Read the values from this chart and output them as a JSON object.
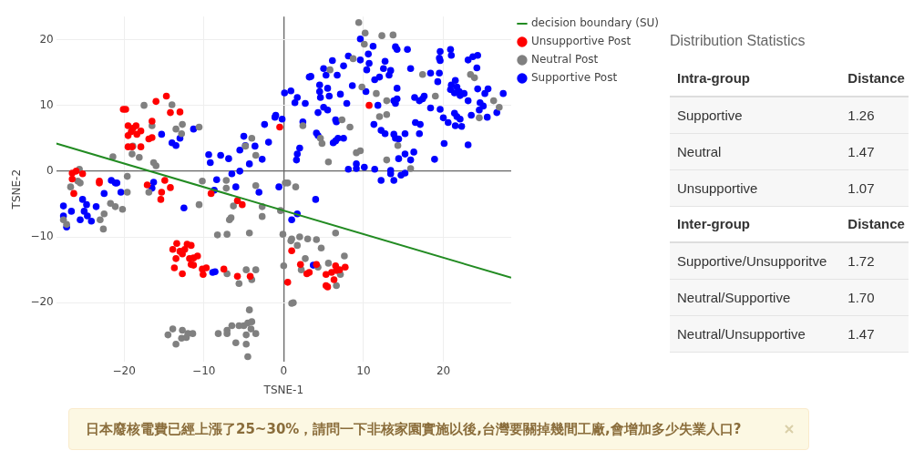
{
  "chart_data": [
    {
      "type": "scatter",
      "xlabel": "TSNE-1",
      "ylabel": "TSNE-2",
      "xlim": [
        -28.5,
        28.5
      ],
      "ylim": [
        -29,
        23.5
      ],
      "xticks": [
        {
          "value": -20,
          "label": "−20"
        },
        {
          "value": -10,
          "label": "−10"
        },
        0,
        10,
        20
      ],
      "yticks": [
        {
          "value": -20,
          "label": "−20"
        },
        {
          "value": -10,
          "label": "−10"
        },
        0,
        10,
        20
      ],
      "grid": true,
      "legend": "top right",
      "marker": "circle",
      "annotations": [
        "日本廢核電費已經上漲了25~30%，請問一下非核家園實施以後,台灣要關掉幾間工廠,會增加多少失業人口?"
      ],
      "series": [
        {
          "name": "decision boundary (SU)",
          "type": "line",
          "line_style": "solid",
          "marker": "none",
          "color": "#228b22",
          "x": [
            -28.5,
            28.5
          ],
          "values": [
            4.2,
            -16.2
          ]
        },
        {
          "name": "Unsupportive Post",
          "color": "#ff0000",
          "x": [
            -20.1,
            -19.8,
            -16.0,
            -14.7,
            -14.2,
            -13.0,
            -16.5,
            -19.5,
            -18.5,
            -18.9,
            -19.1,
            -17.9,
            -19.5,
            -18.4,
            -16.9,
            -16.5,
            -19.5,
            -19.0,
            -17.9,
            -0.5,
            10.7,
            -26.5,
            -26.0,
            -25.2,
            -26.5,
            -23.1,
            -23.1,
            -17.1,
            -14.9,
            -14.2,
            -26.3,
            -15.3,
            -15.4,
            -9.1,
            -5.8,
            -5.2,
            -13.4,
            -12.1,
            -11.6,
            -13.9,
            -13.0,
            -12.4,
            -12.7,
            -13.5,
            -11.8,
            -11.3,
            -10.8,
            -11.6,
            -11.3,
            -13.7,
            -12.7,
            -10.2,
            -9.7,
            -10.1,
            -7.5,
            -5.8,
            -4.2,
            0.5,
            1.0,
            2.1,
            4.1,
            2.9,
            3.2,
            6.5,
            7.7,
            5.3,
            6.0,
            6.6,
            7.0,
            6.3,
            5.3,
            5.5
          ],
          "values": [
            9.4,
            9.4,
            10.6,
            11.4,
            8.9,
            9.0,
            7.6,
            6.9,
            6.9,
            6.5,
            6.0,
            6.1,
            5.4,
            5.6,
            4.9,
            5.1,
            3.7,
            3.7,
            3.7,
            6.7,
            10.0,
            -0.3,
            0,
            -0.4,
            -1.2,
            -1.5,
            -1.8,
            -2.1,
            -1.4,
            -2.5,
            -3.4,
            -3.2,
            -4.3,
            -3.4,
            -4.5,
            -5.1,
            -11.0,
            -11.1,
            -11.3,
            -11.9,
            -12.2,
            -11.9,
            -12.6,
            -13.3,
            -13.3,
            -13.2,
            -12.9,
            -14.2,
            -14.3,
            -14.7,
            -15.6,
            -14.9,
            -14.7,
            -15.7,
            -14.9,
            -16.0,
            -16.0,
            -16.9,
            -12.1,
            -14.2,
            -14.2,
            -15.6,
            -15.4,
            -14.4,
            -14.6,
            -15.7,
            -15.4,
            -15.1,
            -15.0,
            -16.5,
            -17.4,
            -17.6
          ]
        },
        {
          "name": "Neutral Post",
          "color": "#808080",
          "x": [
            -17.5,
            -14.0,
            -13.5,
            -12.7,
            -12.8,
            -16.5,
            -10.6,
            -18.9,
            -19.0,
            -18.1,
            -21.4,
            -16.3,
            -16.0,
            -25.6,
            -25.8,
            -25.5,
            -26.7,
            -19.6,
            -19.6,
            -10.2,
            -4.8,
            -4.0,
            -3.5,
            -7.2,
            -7.2,
            -3.5,
            0.2,
            9.4,
            10.2,
            12.3,
            13.7,
            10.1,
            8.7,
            5.8,
            17.4,
            23.4,
            23.9,
            19.0,
            9.8,
            11.6,
            12.9,
            26.3,
            27.0,
            24.5,
            12.0,
            12.9,
            7.3,
            8.3,
            2.4,
            4.6,
            4.8,
            14.3,
            9.1,
            9.6,
            5.6,
            12.9,
            15.9,
            0.5,
            1.5,
            -27.6,
            -27.2,
            -23.0,
            -22.5,
            -22.6,
            -21.7,
            -21.1,
            -20.2,
            -16.9,
            -10.6,
            -8.3,
            -7.1,
            -6.8,
            -6.6,
            -6.3,
            -4.3,
            -2.7,
            -2.7,
            -7.1,
            -5.6,
            -4.7,
            -3.5,
            -4.0,
            -0.1,
            0,
            -14.5,
            -13.9,
            -12.7,
            -12.0,
            -11.4,
            -13.5,
            -12.8,
            -12.2,
            -8.2,
            -7.1,
            -6.5,
            -5.6,
            -5.0,
            -4.5,
            -4.0,
            -4.1,
            -3.5,
            -4.7,
            -4.3,
            -6.0,
            -4.7,
            -4.5,
            -7.1,
            -0.4,
            0.9,
            1.0,
            1.7,
            2.0,
            3.0,
            4.1,
            4.7,
            6.5,
            2.7,
            2.2,
            5.6,
            4.3,
            7.6,
            7.1,
            6.6,
            1.0,
            1.2
          ],
          "values": [
            10.0,
            10.1,
            6.4,
            7.1,
            5.7,
            6.9,
            6.7,
            3.8,
            2.6,
            2.1,
            2.2,
            1.3,
            0.8,
            0.3,
            -1.5,
            -1.8,
            -2.4,
            -0.8,
            -3.2,
            -1.5,
            3.8,
            5.0,
            2.4,
            -1.4,
            -2.6,
            -2.2,
            -1.8,
            22.6,
            21.0,
            20.6,
            20.7,
            19.3,
            17.1,
            15.4,
            14.7,
            14.7,
            14.2,
            11.4,
            12.8,
            11.8,
            10.7,
            10.7,
            9.7,
            8.1,
            8.3,
            8.6,
            7.8,
            6.7,
            6.9,
            5.0,
            4.2,
            3.9,
            2.8,
            3.1,
            1.4,
            1.7,
            0.4,
            -1.8,
            -2.4,
            -7.4,
            -8.1,
            -7.4,
            -6.5,
            -8.8,
            -4.9,
            -5.4,
            -5.8,
            -3.2,
            -5.1,
            -9.7,
            -9.6,
            -7.4,
            -7.1,
            -5.3,
            -9.4,
            -6.9,
            -5.4,
            -15.6,
            -17.1,
            -15.0,
            -15.0,
            -16.5,
            -9.6,
            -14.4,
            -24.9,
            -24.0,
            -24.2,
            -24.7,
            -24.7,
            -26.3,
            -25.4,
            -25.3,
            -24.7,
            -24.2,
            -23.5,
            -23.5,
            -23.5,
            -23.1,
            -22.9,
            -24.0,
            -24.7,
            -24.9,
            -21.1,
            -26.1,
            -26.3,
            -28.2,
            -24.7,
            -6.0,
            -10.6,
            -10.3,
            -11.3,
            -10.0,
            -10.3,
            -10.4,
            -11.7,
            -9.4,
            -13.3,
            -15.0,
            -14.0,
            -14.6,
            -12.9,
            -15.7,
            -17.4,
            -20.1,
            -20.0
          ]
        },
        {
          "name": "Supportive Post",
          "color": "#0000ff",
          "x": [
            -15.3,
            -14.0,
            -13.5,
            -13.0,
            -11.3,
            -9.4,
            -9.2,
            -7.9,
            -6.9,
            -8.4,
            -6.5,
            -5.5,
            -6.0,
            -5.5,
            -4.8,
            -5.0,
            -4.3,
            -3.6,
            -2.7,
            -2.4,
            -1.9,
            -1.1,
            -1.0,
            -0.2,
            0.1,
            -0.6,
            -3.1,
            -22.5,
            -21.6,
            -20.9,
            -20.4,
            -16.3,
            -16.5,
            -27.6,
            -26.6,
            -27.6,
            -27.2,
            -25.5,
            -24.1,
            -25.2,
            -24.7,
            -25.0,
            -24.6,
            -23.5,
            -21.1,
            -12.5,
            -8.9,
            -8.6,
            -8.7,
            4.0,
            1.7,
            1.0,
            12.2,
            13.8,
            3.7,
            9.6,
            11.2,
            14.0,
            14.2,
            15.5,
            10.6,
            8.1,
            9.6,
            10.7,
            12.7,
            6.1,
            7.5,
            5.0,
            5.3,
            6.7,
            3.4,
            3.2,
            10.4,
            12.5,
            13.4,
            12.0,
            11.4,
            13.2,
            15.9,
            18.4,
            19.5,
            19.6,
            19.5,
            19.6,
            20.9,
            21.0,
            23.1,
            23.7,
            24.3,
            24.2,
            19.3,
            21.5,
            21.0,
            21.7,
            20.9,
            22.0,
            21.4,
            22.6,
            22.1,
            24.3,
            25.6,
            25.2,
            27.5,
            23.1,
            24.6,
            25.0,
            24.5,
            25.5,
            26.7,
            23.5,
            21.4,
            21.7,
            22.1,
            21.5,
            22.3,
            20.6,
            20.0,
            16.4,
            17.0,
            17.4,
            17.6,
            18.4,
            19.6,
            16.5,
            17.1,
            17.0,
            20.1,
            23.1,
            18.9,
            14.0,
            13.8,
            14.2,
            11.8,
            14.2,
            10.3,
            8.6,
            7.1,
            7.9,
            5.7,
            4.5,
            4.5,
            4.6,
            5.5,
            2.7,
            1.7,
            1.4,
            0.9,
            4.3,
            5.0,
            5.5,
            6.5,
            6.6,
            2.4,
            4.1,
            4.3,
            6.5,
            6.8,
            7.5,
            6.2,
            2.0,
            1.7,
            1.6,
            11.3,
            12.2,
            12.7,
            13.8,
            14.0,
            14.4,
            15.2,
            15.2,
            16.3,
            15.9,
            14.4,
            8.1,
            9.1,
            9.1,
            10.1,
            11.4,
            13.4,
            13.4,
            14.7,
            15.2
          ],
          "values": [
            5.6,
            4.3,
            3.9,
            5.0,
            6.4,
            2.5,
            1.3,
            2.4,
            1.9,
            -1.3,
            -0.4,
            0,
            -2.4,
            3.2,
            3.9,
            5.3,
            1.1,
            3.8,
            1.8,
            7.1,
            4.4,
            8.2,
            8.5,
            7.9,
            11.9,
            -2.4,
            -3.2,
            -3.4,
            -1.4,
            -1.8,
            -3.2,
            -1.7,
            -2.6,
            -5.3,
            -6.1,
            -6.8,
            -8.5,
            -7.4,
            -7.6,
            -4.3,
            -5.1,
            -6.1,
            -6.8,
            -5.4,
            -1.8,
            -5.6,
            -15.4,
            -15.3,
            -2.9,
            -4.3,
            -6.5,
            -7.4,
            -1.4,
            -1.4,
            -14.3,
            20.1,
            19.0,
            18.9,
            18.5,
            18.5,
            17.8,
            17.5,
            16.9,
            16.4,
            16.7,
            16.8,
            16.0,
            15.6,
            14.6,
            14.6,
            14.4,
            14.3,
            15.4,
            15.6,
            15.3,
            14.3,
            13.9,
            14.6,
            15.6,
            14.9,
            14.9,
            18.2,
            17.2,
            16.8,
            18.5,
            17.6,
            16.9,
            17.4,
            17.6,
            15.7,
            13.6,
            13.8,
            13.1,
            12.8,
            12.4,
            12.1,
            11.9,
            11.8,
            11.5,
            12.5,
            12.5,
            11.8,
            11.8,
            10.7,
            10.4,
            9.9,
            9.3,
            8.2,
            8.9,
            8.5,
            8.8,
            8.3,
            7.9,
            6.9,
            6.8,
            7.4,
            8.1,
            11.2,
            10.7,
            11.0,
            11.4,
            9.6,
            9.4,
            7.4,
            7.1,
            5.7,
            4.2,
            4.0,
            1.8,
            10.3,
            10.7,
            11.0,
            10.0,
            12.6,
            12.1,
            13.0,
            11.7,
            10.3,
            11.4,
            13.1,
            12.1,
            11.2,
            12.6,
            10.3,
            11.2,
            10.4,
            12.2,
            8.9,
            9.7,
            9.3,
            7.8,
            7.5,
            7.5,
            5.8,
            5.4,
            4.6,
            5.0,
            5.0,
            4.3,
            3.5,
            2.6,
            1.7,
            7.1,
            6.2,
            5.7,
            5.6,
            5.0,
            4.9,
            5.7,
            2.6,
            2.9,
            1.7,
            1.9,
            0.3,
            1.1,
            0.4,
            0.6,
            0.3,
            0.1,
            -0.4,
            -0.6,
            -0.3
          ]
        }
      ]
    },
    {
      "type": "other",
      "title": "Distribution Statistics",
      "annotations": [
        "Intra-group",
        "Distance",
        "Supportive",
        "1.26",
        "Neutral",
        "1.47",
        "Unsupportive",
        "1.07",
        "Inter-group",
        "Distance",
        "Supportive/Unsupporitve",
        "1.72",
        "Neutral/Supportive",
        "1.70",
        "Neutral/Unsupportive",
        "1.47"
      ]
    }
  ]
}
